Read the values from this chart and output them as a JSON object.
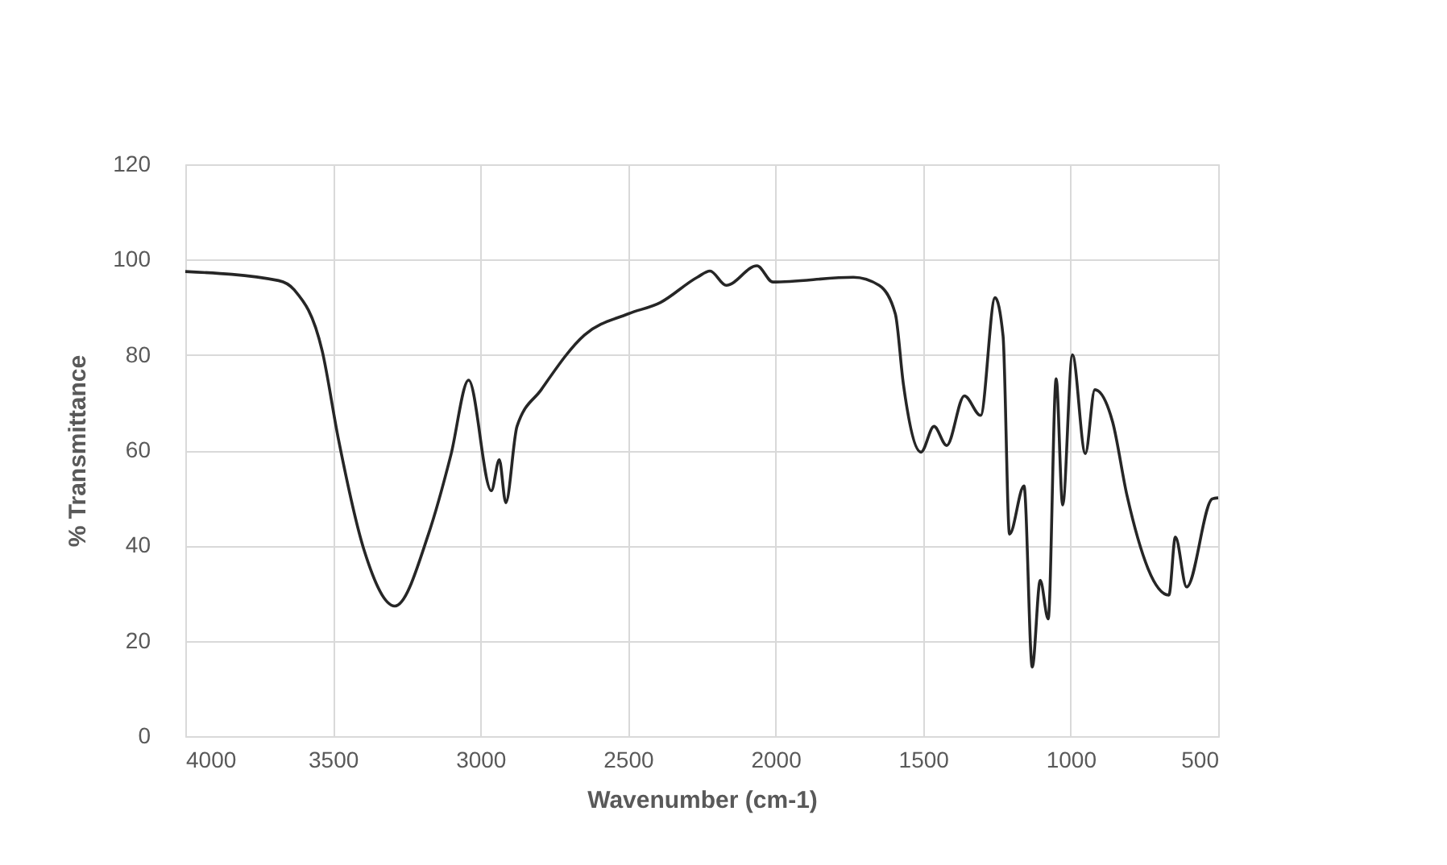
{
  "chart_data": {
    "type": "line",
    "xlabel": "Wavenumber (cm-1)",
    "ylabel": "% Transmittance",
    "x": [
      4000,
      3684,
      3630,
      3536,
      3482,
      3394,
      3290,
      3176,
      3100,
      3040,
      2963,
      2936,
      2914,
      2876,
      2794,
      2647,
      2500,
      2390,
      2265,
      2222,
      2167,
      2063,
      2009,
      1736,
      1649,
      1594,
      1567,
      1507,
      1463,
      1420,
      1360,
      1305,
      1256,
      1229,
      1207,
      1158,
      1130,
      1103,
      1076,
      1049,
      1027,
      994,
      950,
      918,
      858,
      809,
      667,
      645,
      607,
      520,
      500
    ],
    "series": [
      {
        "color": "#262626",
        "values": [
          97.5,
          95.6,
          93.6,
          80.8,
          62.6,
          39,
          27.3,
          42.4,
          59,
          74.7,
          51.5,
          58,
          49,
          65,
          72.7,
          84.2,
          88.6,
          91,
          96.3,
          97.6,
          94.6,
          98.7,
          95.3,
          96.3,
          94.6,
          88.6,
          74,
          59.6,
          65,
          61,
          71.4,
          67.3,
          92,
          84,
          42.4,
          52.5,
          14.5,
          32.7,
          24.6,
          75,
          48.5,
          80,
          59.3,
          72.7,
          66,
          50.5,
          29.6,
          41.8,
          31.3,
          49.8,
          50
        ]
      }
    ],
    "xlim": [
      4000,
      500
    ],
    "xticks": [
      4000,
      3500,
      3000,
      2500,
      2000,
      1500,
      1000,
      500
    ],
    "ylim": [
      0,
      120
    ],
    "yticks": [
      0,
      20,
      40,
      60,
      80,
      100,
      120
    ],
    "grid": true,
    "marker": "none",
    "line_style": "solid"
  }
}
